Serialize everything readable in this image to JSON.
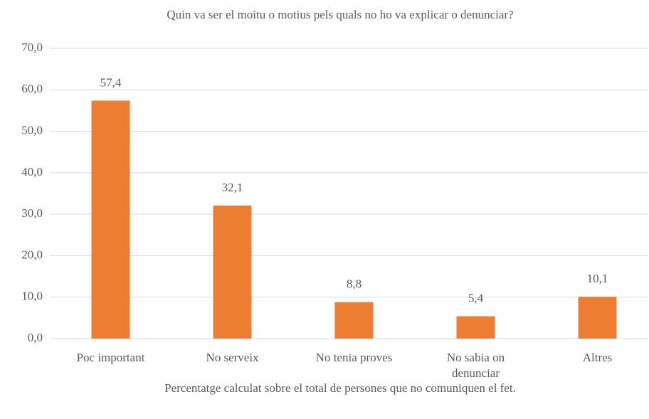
{
  "chart_data": {
    "type": "bar",
    "title": "Quin va ser el moitu o motius pels quals no ho va explicar o denunciar?",
    "categories": [
      "Poc important",
      "No serveix",
      "No tenia proves",
      "No sabia on denunciar",
      "Altres"
    ],
    "values": [
      57.4,
      32.1,
      8.8,
      5.4,
      10.1
    ],
    "value_labels": [
      "57,4",
      "32,1",
      "8,8",
      "5,4",
      "10,1"
    ],
    "color": "#ed7d31",
    "ylim": [
      0,
      70
    ],
    "yticks": [
      {
        "value": 0,
        "label": "0,0"
      },
      {
        "value": 10,
        "label": "10,0"
      },
      {
        "value": 20,
        "label": "20,0"
      },
      {
        "value": 30,
        "label": "30,0"
      },
      {
        "value": 40,
        "label": "40,0"
      },
      {
        "value": 50,
        "label": "50,0"
      },
      {
        "value": 60,
        "label": "60,0"
      },
      {
        "value": 70,
        "label": "70,0"
      }
    ],
    "grid": true,
    "note": "Percentatge calculat sobre el total de persones que no comuniquen el fet."
  }
}
